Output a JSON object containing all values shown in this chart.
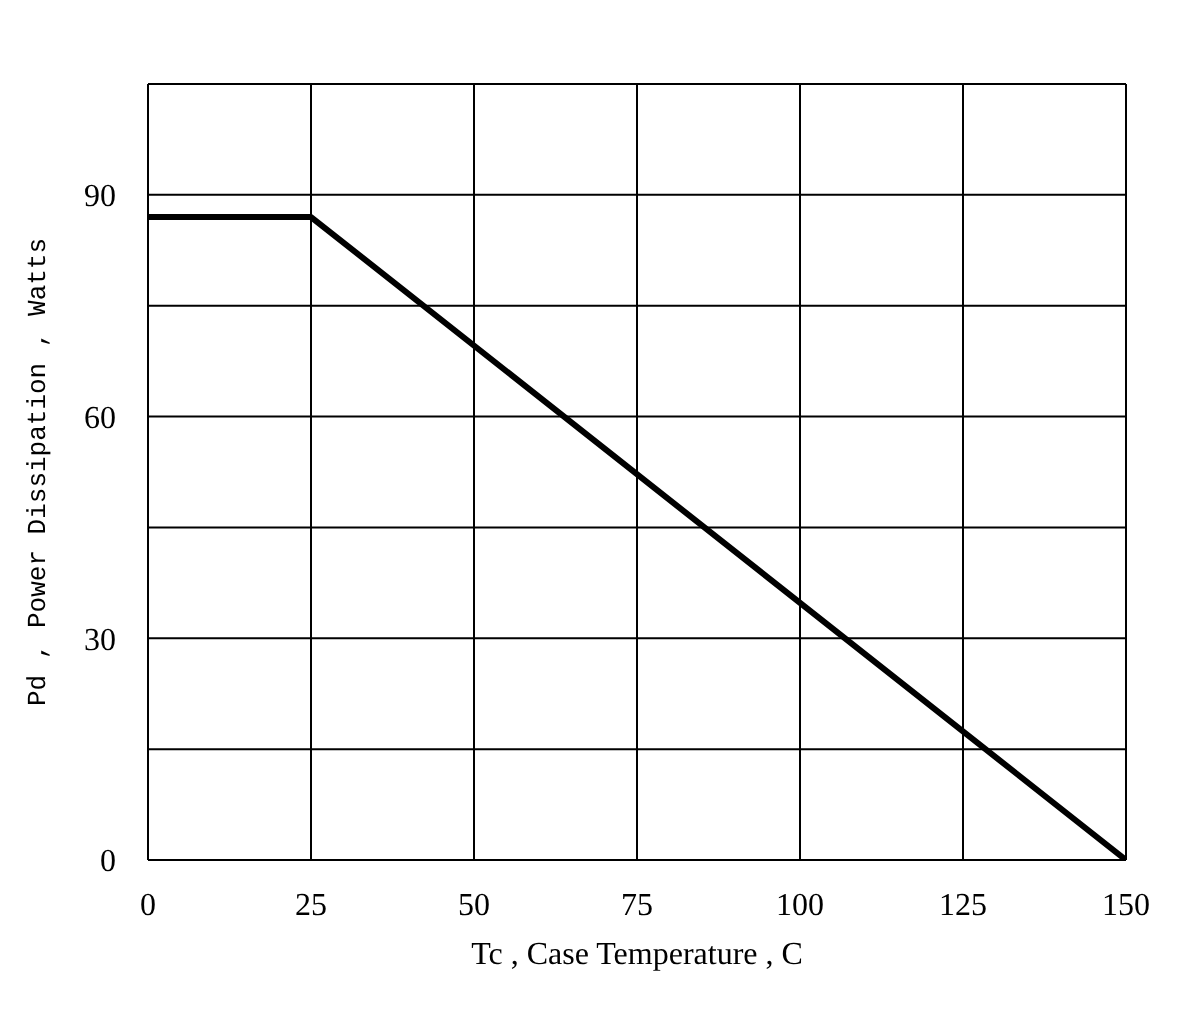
{
  "chart_data": {
    "type": "line",
    "xlabel": "Tc , Case Temperature , C",
    "ylabel": "Pd ,  Power Dissipation , Watts",
    "x": [
      0,
      25,
      150
    ],
    "series": [
      {
        "color": "#000000",
        "values": [
          87,
          87,
          0
        ]
      }
    ],
    "xlim": [
      0,
      150
    ],
    "xticks": [
      0,
      25,
      50,
      75,
      100,
      125,
      150
    ],
    "ylim": [
      0,
      105
    ],
    "yticks": [
      0,
      {
        "value": 15,
        "label": null
      },
      30,
      {
        "value": 45,
        "label": null
      },
      60,
      {
        "value": 75,
        "label": null
      },
      90,
      {
        "value": 105,
        "label": null
      }
    ],
    "grid": true,
    "marker": "none",
    "line_style": "solid",
    "legend": false
  }
}
